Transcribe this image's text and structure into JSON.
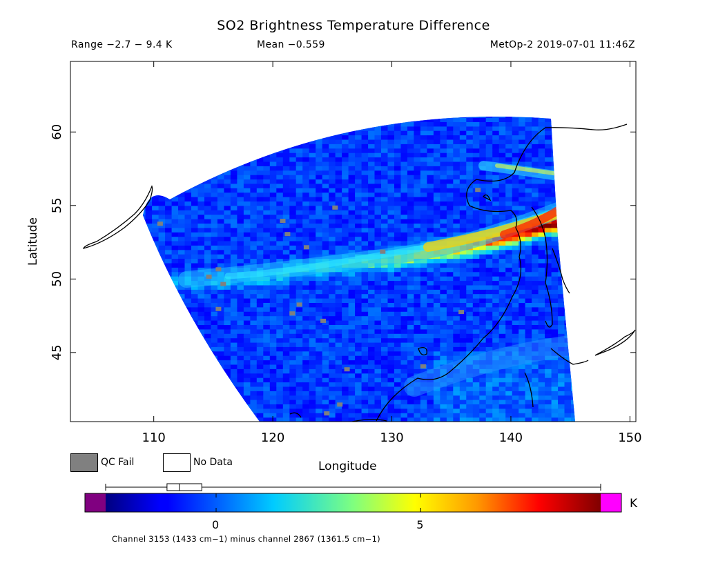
{
  "chart_data": {
    "type": "heatmap",
    "title": "SO2 Brightness Temperature Difference",
    "range_text": "Range −2.7 − 9.4 K",
    "mean_text": "Mean −0.559",
    "satellite_text": "MetOp-2 2019-07-01 11:46Z",
    "xlabel": "Longitude",
    "ylabel": "Latitude",
    "xlim": [
      103,
      150.5
    ],
    "ylim": [
      40.3,
      64.8
    ],
    "xticks": [
      110,
      120,
      130,
      140,
      150
    ],
    "yticks": [
      45,
      50,
      55,
      60
    ],
    "x_tick_labels": [
      "110",
      "120",
      "130",
      "140",
      "150"
    ],
    "y_tick_labels": [
      "45",
      "50",
      "55",
      "60"
    ],
    "legend": [
      {
        "label": "QC Fail",
        "color": "#808080"
      },
      {
        "label": "No Data",
        "color": "#ffffff"
      }
    ],
    "colorbar": {
      "unit": "K",
      "vmin": -2.7,
      "vmax": 9.4,
      "ticks": [
        0,
        5
      ],
      "tick_labels": [
        "0",
        "5"
      ],
      "under_color": "#800080",
      "over_color": "#ff00ff",
      "box_plot": {
        "min": -2.7,
        "q1": -1.2,
        "median": -0.9,
        "q3": -0.35,
        "max": 9.4
      }
    },
    "plume": {
      "description": "SO2 band",
      "path_lon": [
        113.0,
        118.0,
        124.0,
        130.0,
        135.0,
        139.0,
        143.0
      ],
      "path_lat": [
        49.6,
        49.9,
        50.7,
        51.2,
        51.9,
        52.6,
        53.6
      ],
      "peak_value_K": 9.0,
      "background_value_K": -0.6
    },
    "footnote": "Channel 3153 (1433 cm−1) minus channel 2867 (1361.5 cm−1)"
  }
}
